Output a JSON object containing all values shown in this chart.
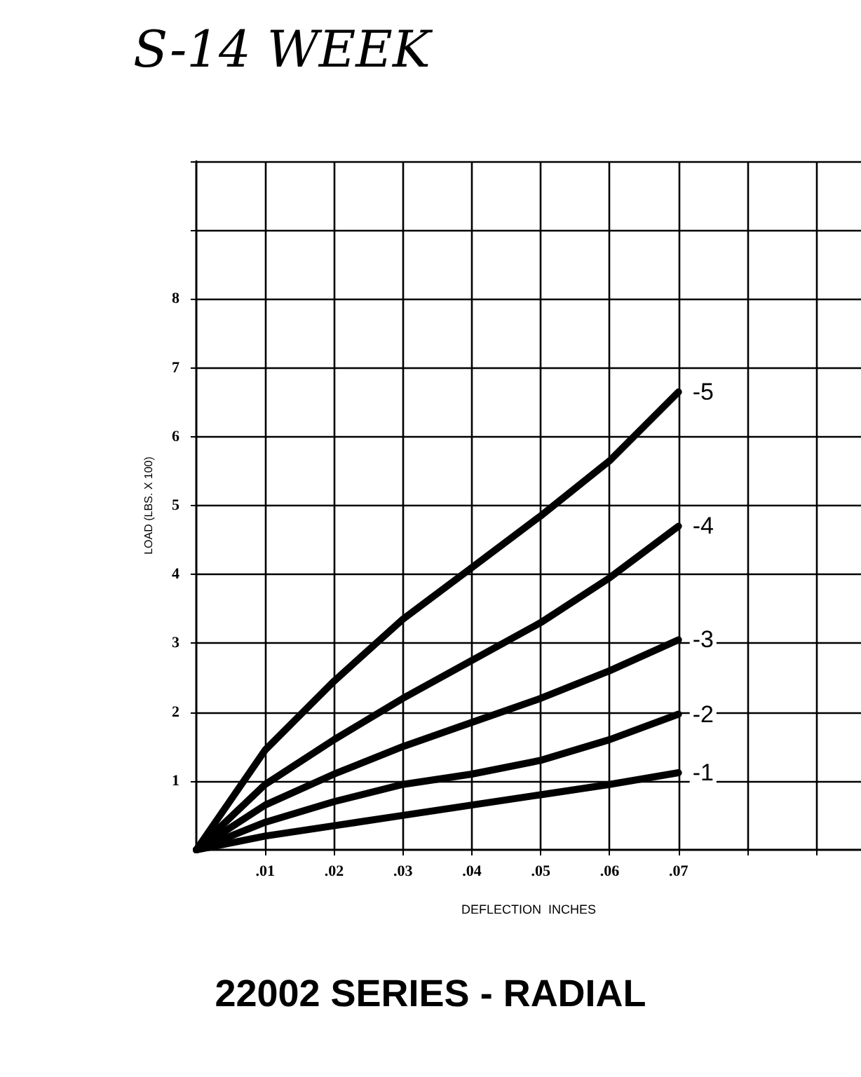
{
  "chart_data": {
    "type": "line",
    "title": "22002 SERIES - RADIAL",
    "xlabel": "DEFLECTION  INCHES",
    "ylabel": "LOAD (LBS. X 100)",
    "annotations": [
      "S-14 WEEK"
    ],
    "x": [
      0,
      0.01,
      0.02,
      0.03,
      0.04,
      0.05,
      0.06,
      0.07
    ],
    "series": [
      {
        "name": "-5",
        "color": "#000000",
        "values": [
          0,
          1.45,
          2.45,
          3.35,
          4.1,
          4.85,
          5.65,
          6.65
        ]
      },
      {
        "name": "-4",
        "color": "#000000",
        "values": [
          0,
          0.95,
          1.6,
          2.2,
          2.75,
          3.3,
          3.95,
          4.7
        ]
      },
      {
        "name": "-3",
        "color": "#000000",
        "values": [
          0,
          0.65,
          1.1,
          1.5,
          1.85,
          2.2,
          2.6,
          3.05
        ]
      },
      {
        "name": "-2",
        "color": "#000000",
        "values": [
          0,
          0.4,
          0.7,
          0.95,
          1.1,
          1.3,
          1.6,
          1.97
        ]
      },
      {
        "name": "-1",
        "color": "#000000",
        "values": [
          0,
          0.2,
          0.35,
          0.5,
          0.65,
          0.8,
          0.95,
          1.12
        ]
      }
    ],
    "xlim": [
      0,
      0.0965
    ],
    "xticks": [
      {
        "value": 0.01,
        "label": ".01"
      },
      {
        "value": 0.02,
        "label": ".02"
      },
      {
        "value": 0.03,
        "label": ".03"
      },
      {
        "value": 0.04,
        "label": ".04"
      },
      {
        "value": 0.05,
        "label": ".05"
      },
      {
        "value": 0.06,
        "label": ".06"
      },
      {
        "value": 0.07,
        "label": ".07"
      },
      {
        "value": 0.08,
        "label": null
      },
      {
        "value": 0.09,
        "label": null
      }
    ],
    "ylim": [
      0,
      10
    ],
    "yticks": [
      1,
      2,
      3,
      4,
      5,
      6,
      7,
      8,
      {
        "value": 9,
        "label": null
      },
      {
        "value": 10,
        "label": null
      }
    ],
    "grid": true,
    "legend": false,
    "marker": "none",
    "line_style": "solid"
  }
}
